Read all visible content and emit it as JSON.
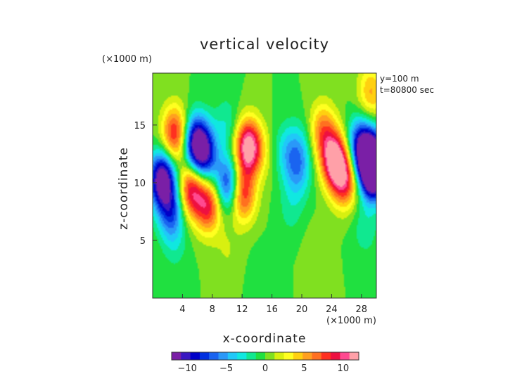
{
  "chart_data": {
    "type": "heatmap",
    "title": "vertical velocity",
    "xlabel": "x-coordinate",
    "ylabel": "z-coordinate",
    "x_unit": "(×1000 m)",
    "y_unit": "(×1000 m)",
    "annotations": [
      "y=100 m",
      "t=80800 sec"
    ],
    "xlim": [
      0,
      30
    ],
    "ylim": [
      0,
      19.5
    ],
    "x_ticks": [
      4,
      8,
      12,
      16,
      20,
      24,
      28
    ],
    "y_ticks": [
      5,
      10,
      15
    ],
    "colorbar": {
      "ticks": [
        -10,
        -5,
        0,
        5,
        10
      ],
      "range": [
        -12,
        12
      ],
      "colors": [
        "#7a1fa6",
        "#3a18c2",
        "#0000c8",
        "#0030e0",
        "#1a64f0",
        "#2a98f8",
        "#20c8f8",
        "#10e8e0",
        "#10e890",
        "#20e040",
        "#80e020",
        "#d8f010",
        "#ffff20",
        "#ffd010",
        "#ffa020",
        "#ff7020",
        "#ff3020",
        "#ee1040",
        "#ff4a90",
        "#ffa0a8"
      ]
    },
    "features": [
      {
        "x": 1.3,
        "z": 10.3,
        "value": -13
      },
      {
        "x": 2.5,
        "z": 7.5,
        "value": -7
      },
      {
        "x": 3.0,
        "z": 14.2,
        "value": 9
      },
      {
        "x": 5.8,
        "z": 13.5,
        "value": -11
      },
      {
        "x": 5.2,
        "z": 9.4,
        "value": 9.5
      },
      {
        "x": 7.0,
        "z": 12.3,
        "value": -8
      },
      {
        "x": 7.5,
        "z": 8.0,
        "value": 8.5
      },
      {
        "x": 10.2,
        "z": 9.8,
        "value": -9
      },
      {
        "x": 12.8,
        "z": 13.1,
        "value": 12.5
      },
      {
        "x": 12.0,
        "z": 9.0,
        "value": 9
      },
      {
        "x": 14.8,
        "z": 12.5,
        "value": 1.5
      },
      {
        "x": 17.9,
        "z": 12.8,
        "value": -3
      },
      {
        "x": 19.4,
        "z": 10.8,
        "value": -4
      },
      {
        "x": 19.8,
        "z": 13.0,
        "value": -3
      },
      {
        "x": 18.5,
        "z": 7.5,
        "value": -1.5
      },
      {
        "x": 24.4,
        "z": 12.0,
        "value": 12
      },
      {
        "x": 25.8,
        "z": 10.2,
        "value": 8.5
      },
      {
        "x": 22.8,
        "z": 14.5,
        "value": 6
      },
      {
        "x": 27.8,
        "z": 13.3,
        "value": -8
      },
      {
        "x": 29.2,
        "z": 12.0,
        "value": -12
      },
      {
        "x": 29.7,
        "z": 11.0,
        "value": -14
      },
      {
        "x": 10.0,
        "z": 15.0,
        "value": -2.5
      },
      {
        "x": 28.5,
        "z": 6.0,
        "value": -2
      },
      {
        "x": 3.0,
        "z": 4.5,
        "value": -1.5
      },
      {
        "x": 10.0,
        "z": 4.0,
        "value": 1.2
      },
      {
        "x": 22.0,
        "z": 4.0,
        "value": 1.0
      },
      {
        "x": 15.0,
        "z": 2.0,
        "value": -1.0
      },
      {
        "x": 29.3,
        "z": 17.8,
        "value": 5
      }
    ]
  }
}
